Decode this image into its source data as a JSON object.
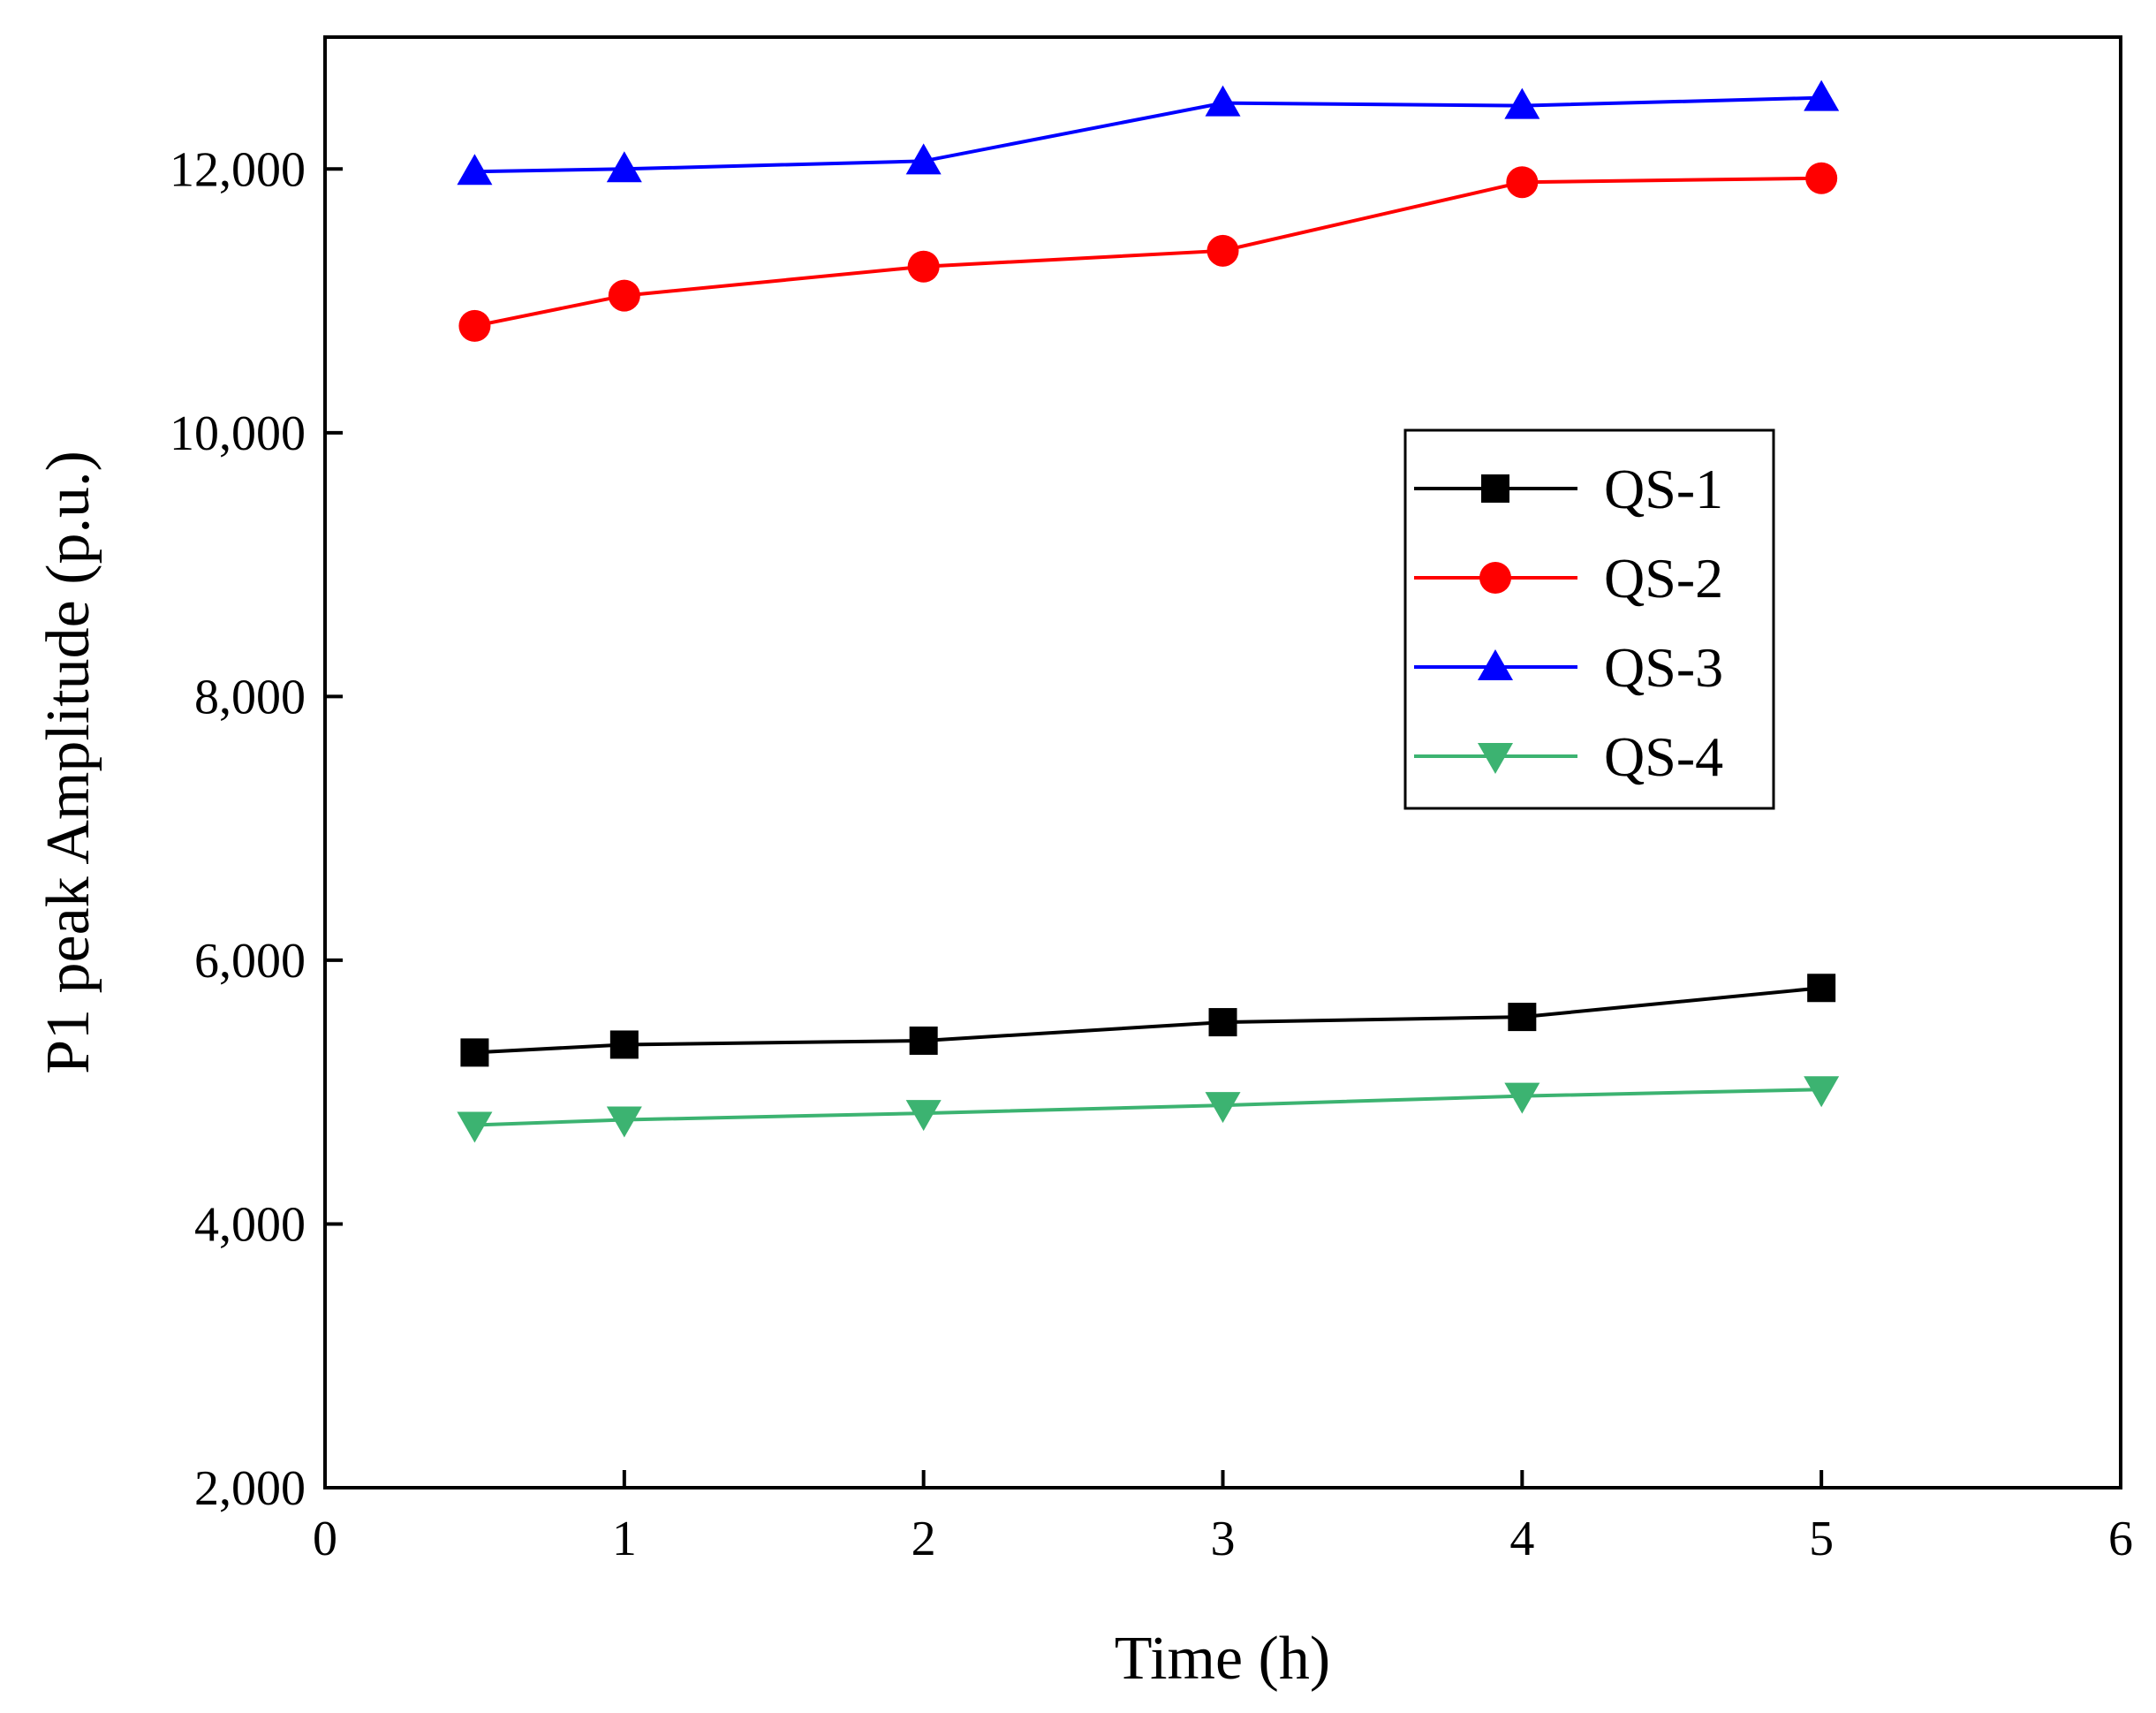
{
  "chart_data": {
    "type": "line",
    "title": "",
    "xlabel": "Time (h)",
    "ylabel": "P1 peak Amplitude (p.u.)",
    "xlim": [
      0,
      6
    ],
    "ylim": [
      2000,
      13000
    ],
    "xticks": [
      0,
      1,
      2,
      3,
      4,
      5,
      6
    ],
    "xtick_labels": [
      "0",
      "1",
      "2",
      "3",
      "4",
      "5",
      "6"
    ],
    "yticks": [
      2000,
      4000,
      6000,
      8000,
      10000,
      12000
    ],
    "ytick_labels": [
      "2,000",
      "4,000",
      "6,000",
      "8,000",
      "10,000",
      "12,000"
    ],
    "grid": false,
    "legend_position": "center-right",
    "x": [
      0.5,
      1,
      2,
      3,
      4,
      5
    ],
    "series": [
      {
        "name": "QS-1",
        "color": "#000000",
        "marker": "square",
        "values": [
          5300,
          5360,
          5390,
          5530,
          5570,
          5790
        ]
      },
      {
        "name": "QS-2",
        "color": "#ff0000",
        "marker": "circle",
        "values": [
          10810,
          11040,
          11260,
          11380,
          11900,
          11930
        ]
      },
      {
        "name": "QS-3",
        "color": "#0000ff",
        "marker": "triangle-up",
        "values": [
          11980,
          12000,
          12060,
          12500,
          12480,
          12540
        ]
      },
      {
        "name": "QS-4",
        "color": "#3cb371",
        "marker": "triangle-down",
        "values": [
          4750,
          4790,
          4840,
          4900,
          4970,
          5020
        ]
      }
    ]
  }
}
